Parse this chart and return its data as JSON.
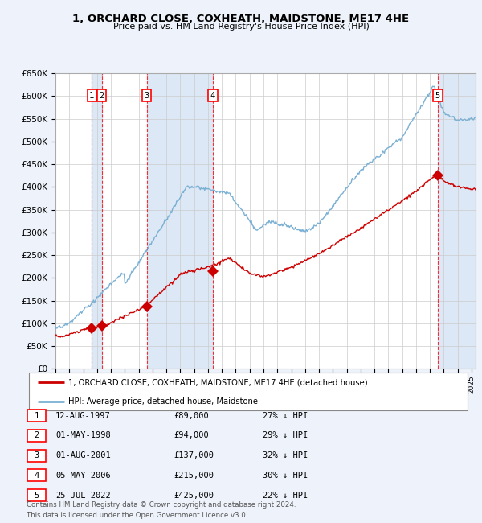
{
  "title": "1, ORCHARD CLOSE, COXHEATH, MAIDSTONE, ME17 4HE",
  "subtitle": "Price paid vs. HM Land Registry's House Price Index (HPI)",
  "ylim": [
    0,
    650000
  ],
  "yticks": [
    0,
    50000,
    100000,
    150000,
    200000,
    250000,
    300000,
    350000,
    400000,
    450000,
    500000,
    550000,
    600000,
    650000
  ],
  "xlim_start": 1995.3,
  "xlim_end": 2025.3,
  "bg_color": "#eef2fa",
  "plot_bg": "#ffffff",
  "band_color": "#dce8f5",
  "grid_color": "#cccccc",
  "sale_color": "#cc0000",
  "hpi_color": "#7ab0d4",
  "sales": [
    {
      "num": 1,
      "date_num": 1997.62,
      "price": 89000
    },
    {
      "num": 2,
      "date_num": 1998.33,
      "price": 94000
    },
    {
      "num": 3,
      "date_num": 2001.58,
      "price": 137000
    },
    {
      "num": 4,
      "date_num": 2006.34,
      "price": 215000
    },
    {
      "num": 5,
      "date_num": 2022.56,
      "price": 425000
    }
  ],
  "table_rows": [
    {
      "num": 1,
      "date": "12-AUG-1997",
      "price": "£89,000",
      "hpi": "27% ↓ HPI"
    },
    {
      "num": 2,
      "date": "01-MAY-1998",
      "price": "£94,000",
      "hpi": "29% ↓ HPI"
    },
    {
      "num": 3,
      "date": "01-AUG-2001",
      "price": "£137,000",
      "hpi": "32% ↓ HPI"
    },
    {
      "num": 4,
      "date": "05-MAY-2006",
      "price": "£215,000",
      "hpi": "30% ↓ HPI"
    },
    {
      "num": 5,
      "date": "25-JUL-2022",
      "price": "£425,000",
      "hpi": "22% ↓ HPI"
    }
  ],
  "legend_sale_label": "1, ORCHARD CLOSE, COXHEATH, MAIDSTONE, ME17 4HE (detached house)",
  "legend_hpi_label": "HPI: Average price, detached house, Maidstone",
  "footnote": "Contains HM Land Registry data © Crown copyright and database right 2024.\nThis data is licensed under the Open Government Licence v3.0."
}
